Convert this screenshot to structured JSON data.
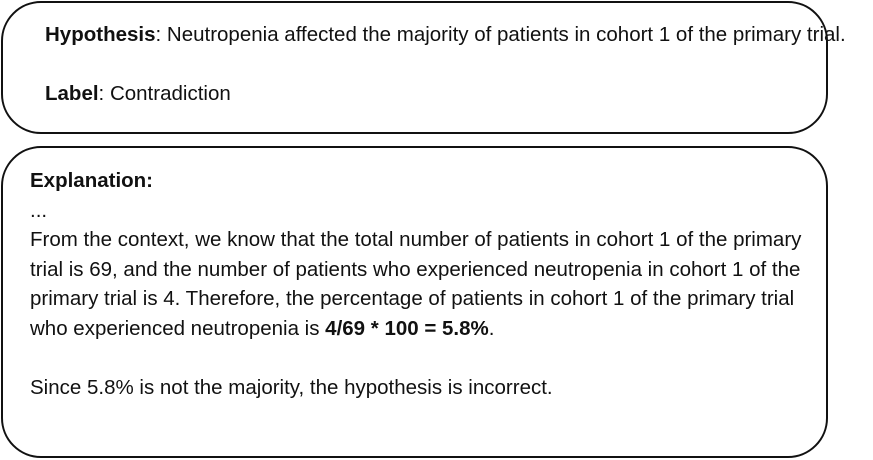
{
  "hypothesis": {
    "label": "Hypothesis",
    "separator": ": ",
    "text": "Neutropenia affected the majority of patients in cohort 1 of the primary trial."
  },
  "label": {
    "label": "Label",
    "separator": ": ",
    "value": "Contradiction"
  },
  "explanation": {
    "heading": "Explanation:",
    "ellipsis": "...",
    "paragraph_text": "From the context, we know that the total number of patients in cohort 1 of the primary trial is 69, and the number of patients who experienced neutropenia in  cohort 1 of the primary trial is 4. Therefore, the percentage of patients in cohort 1 of the primary trial who experienced neutropenia is ",
    "calculation": "4/69 * 100 = 5.8%",
    "paragraph_end": ".",
    "conclusion": "Since 5.8% is not the majority, the hypothesis is incorrect."
  }
}
